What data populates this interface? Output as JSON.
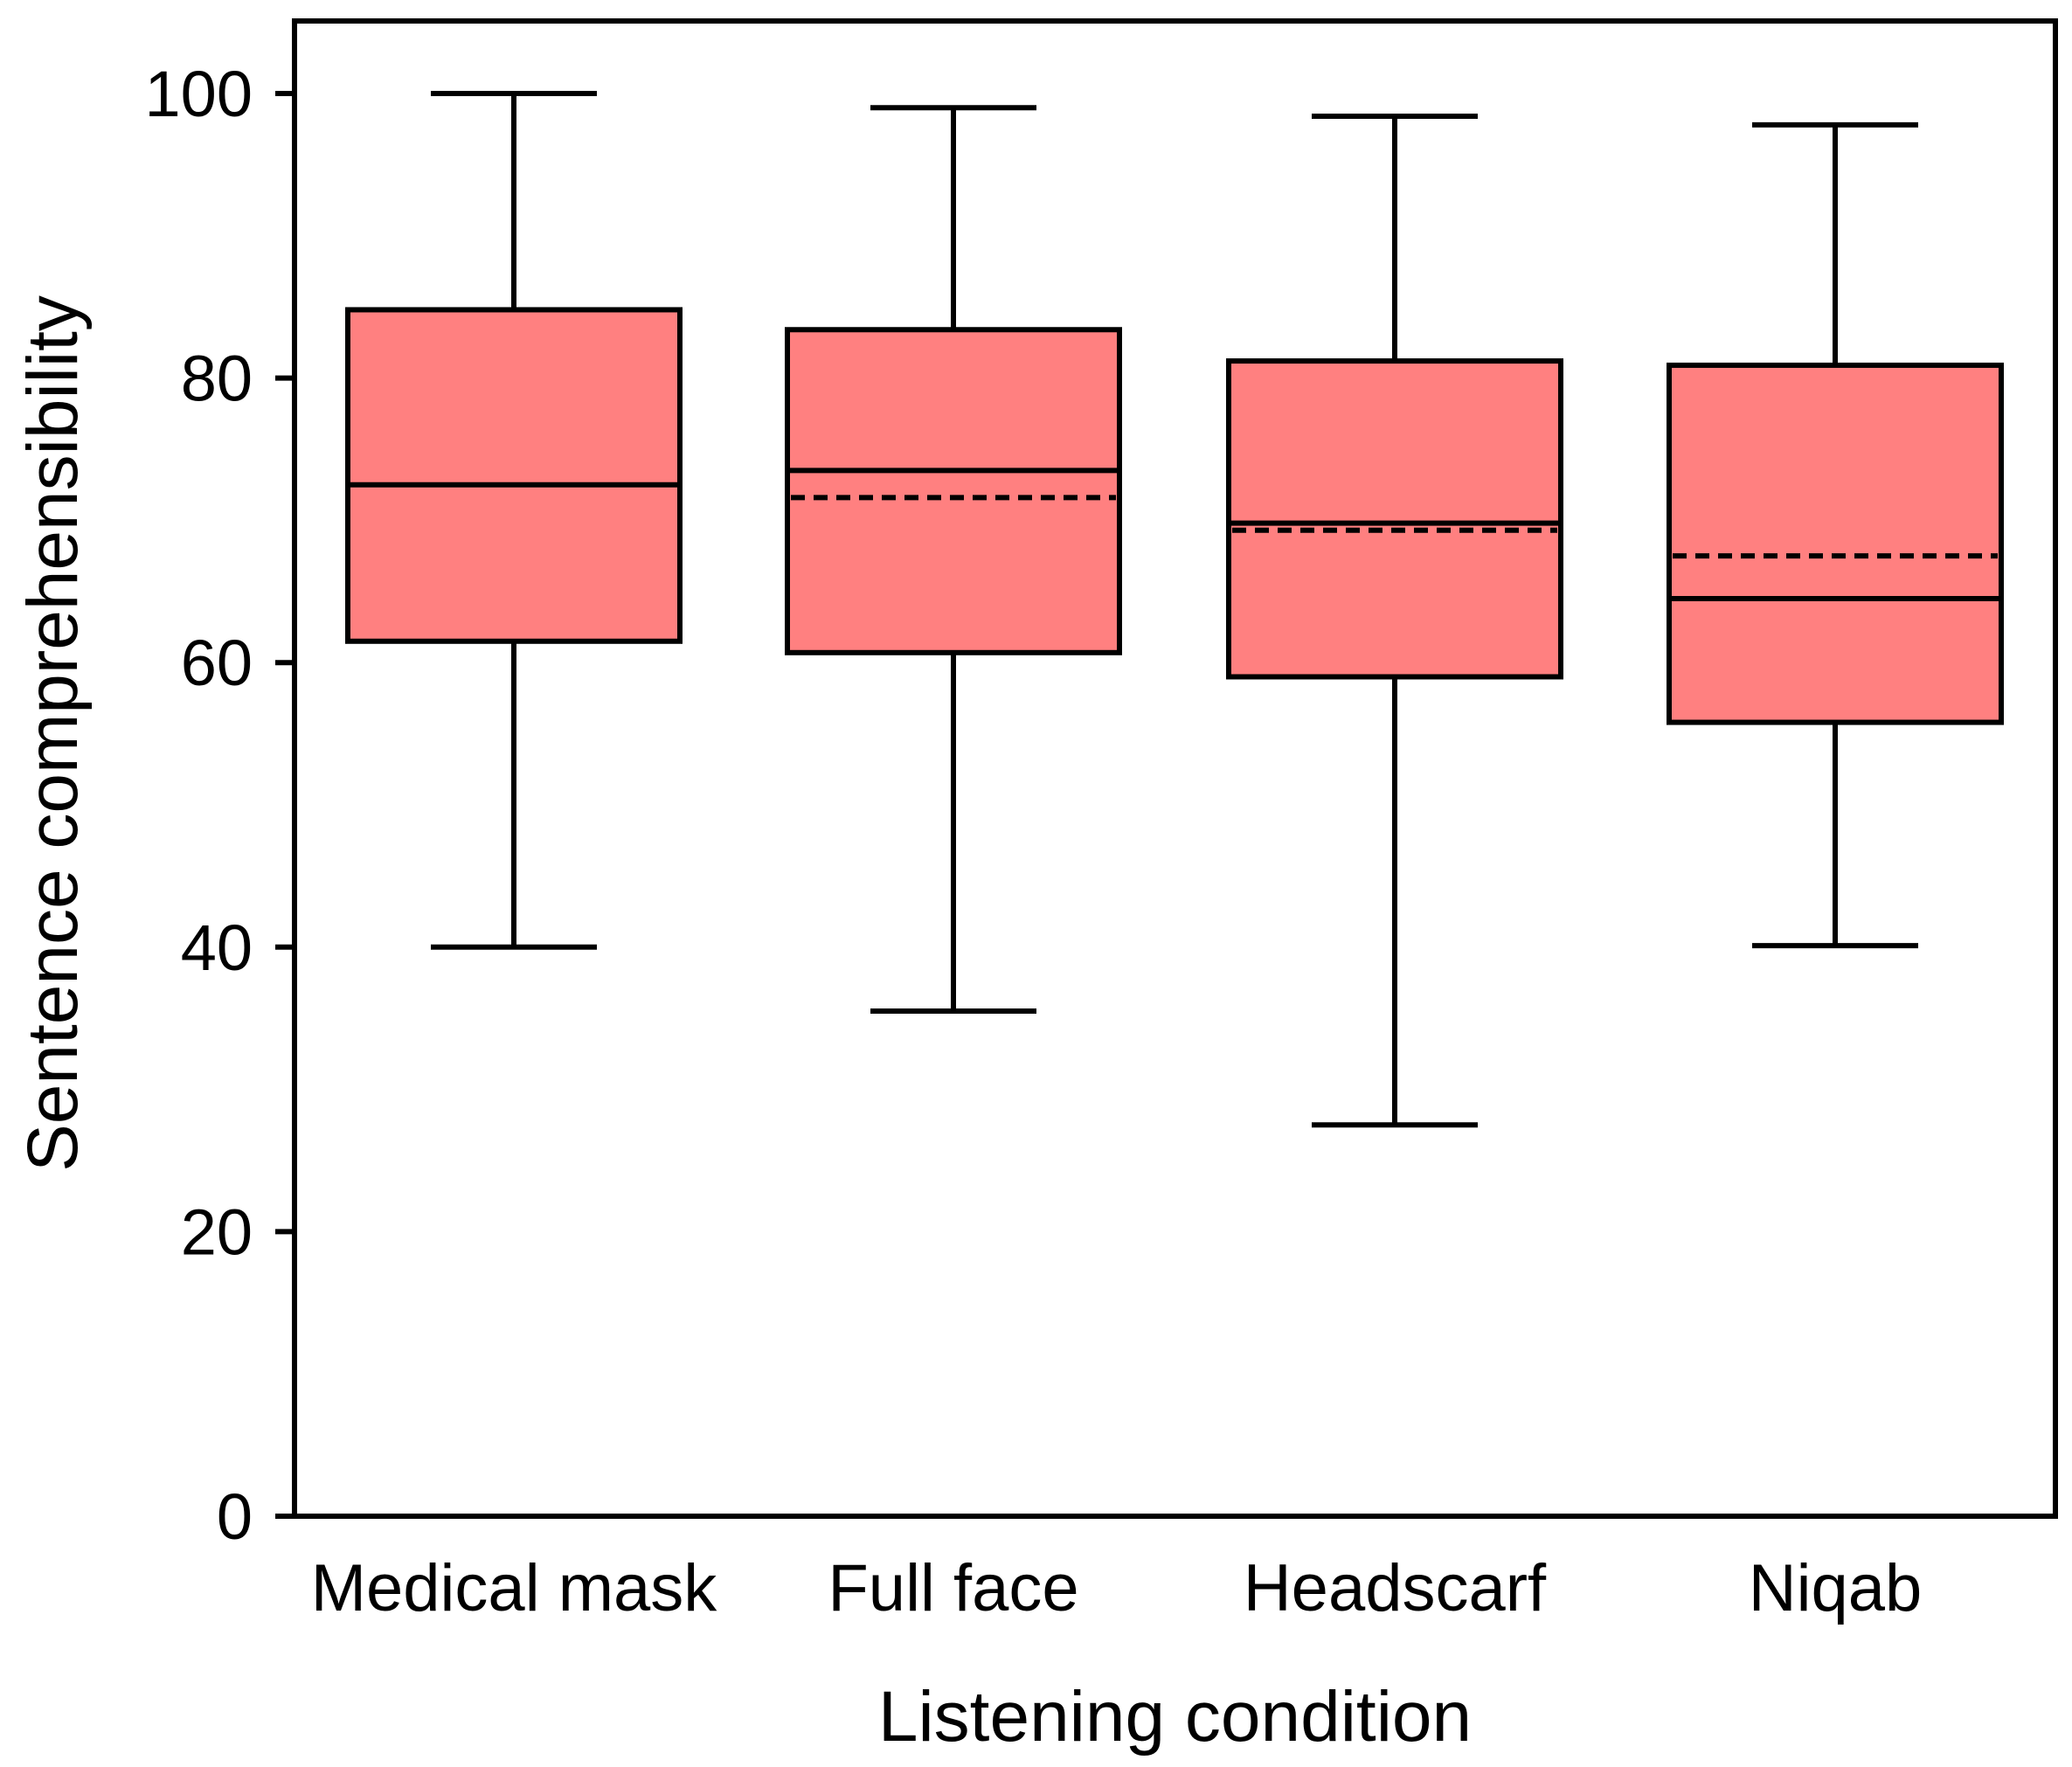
{
  "chart_data": {
    "type": "box",
    "title": "",
    "xlabel": "Listening condition",
    "ylabel": "Sentence comprehensibility",
    "ylim": [
      0,
      105
    ],
    "yticks": [
      0,
      20,
      40,
      60,
      80,
      100
    ],
    "ytick_labels": [
      "0",
      "20",
      "40",
      "60",
      "80",
      "100"
    ],
    "grid": false,
    "box_color": "#FF8080",
    "line_color": "#000000",
    "categories": [
      "Medical mask",
      "Full face",
      "Headscarf",
      "Niqab"
    ],
    "boxes": [
      {
        "name": "Medical mask",
        "whisker_low": 40.0,
        "q1": 61.5,
        "median": 72.5,
        "mean": 72.5,
        "q3": 84.8,
        "whisker_high": 100.0
      },
      {
        "name": "Full face",
        "whisker_low": 35.5,
        "q1": 60.7,
        "median": 73.5,
        "mean": 71.6,
        "q3": 83.4,
        "whisker_high": 99.0
      },
      {
        "name": "Headscarf",
        "whisker_low": 27.5,
        "q1": 59.0,
        "median": 69.8,
        "mean": 69.3,
        "q3": 81.2,
        "whisker_high": 98.4
      },
      {
        "name": "Niqab",
        "whisker_low": 40.1,
        "q1": 55.8,
        "median": 64.5,
        "mean": 67.5,
        "q3": 80.9,
        "whisker_high": 97.8
      }
    ]
  }
}
